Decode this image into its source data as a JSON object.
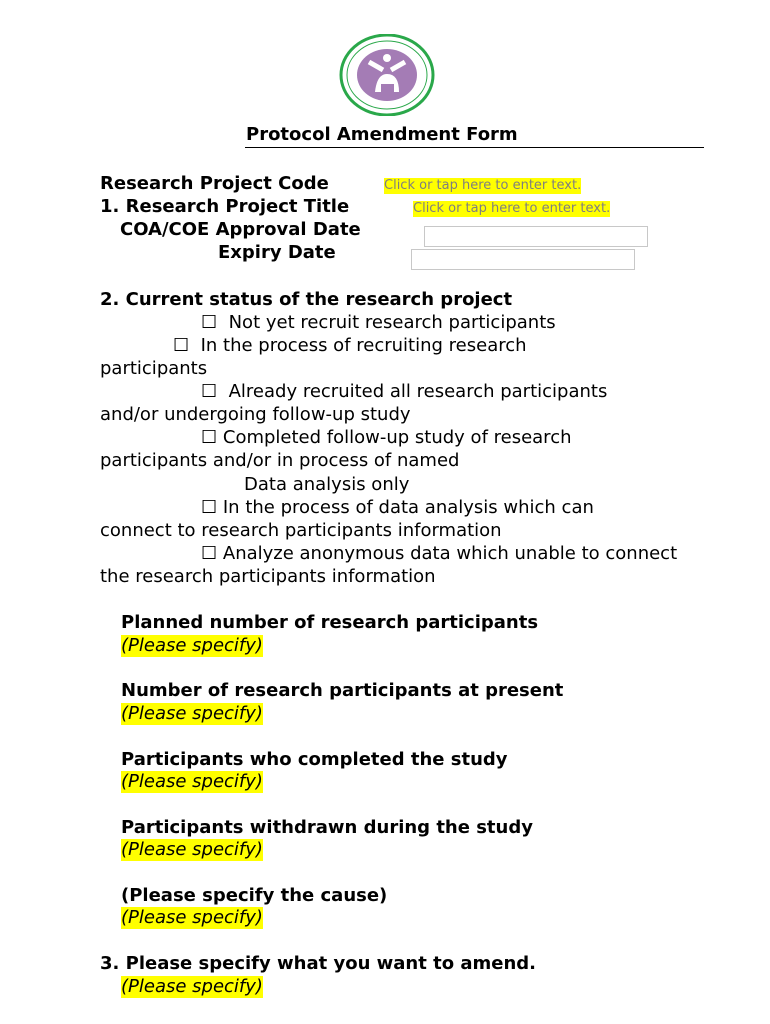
{
  "logo": {
    "name": "university-seal",
    "text": "Chiang Mai University seal"
  },
  "title": "Protocol Amendment Form",
  "fields": {
    "code_label": "Research Project Code",
    "code_placeholder": "Click or tap here to enter text.",
    "title_label": "1. Research Project Title",
    "title_placeholder": "Click or tap here to enter text.",
    "approval_label": "COA/COE Approval Date",
    "expiry_label": "Expiry Date"
  },
  "status": {
    "heading": "2. Current status of the research project",
    "checkbox": "☐",
    "lines": [
      "Not yet recruit research participants",
      "In the process of recruiting research",
      "participants",
      "Already recruited all research participants",
      "and/or undergoing follow-up study",
      "Completed follow-up study of research",
      "participants and/or in process of named",
      "Data analysis only",
      "In the process of data analysis which can",
      "connect to research participants information",
      "Analyze anonymous data which unable to connect",
      "the research participants information"
    ]
  },
  "questions": [
    {
      "label": "Planned number of research participants",
      "value": "(Please specify)"
    },
    {
      "label": "Number of research participants at present",
      "value": "(Please specify)"
    },
    {
      "label": "Participants who completed the study",
      "value": "(Please specify)"
    },
    {
      "label": "Participants withdrawn during the study",
      "value": "(Please specify)"
    },
    {
      "label": "(Please specify the cause)",
      "value": "(Please specify)"
    },
    {
      "label": "3. Please specify what you want to amend.",
      "value": "(Please specify)"
    }
  ]
}
